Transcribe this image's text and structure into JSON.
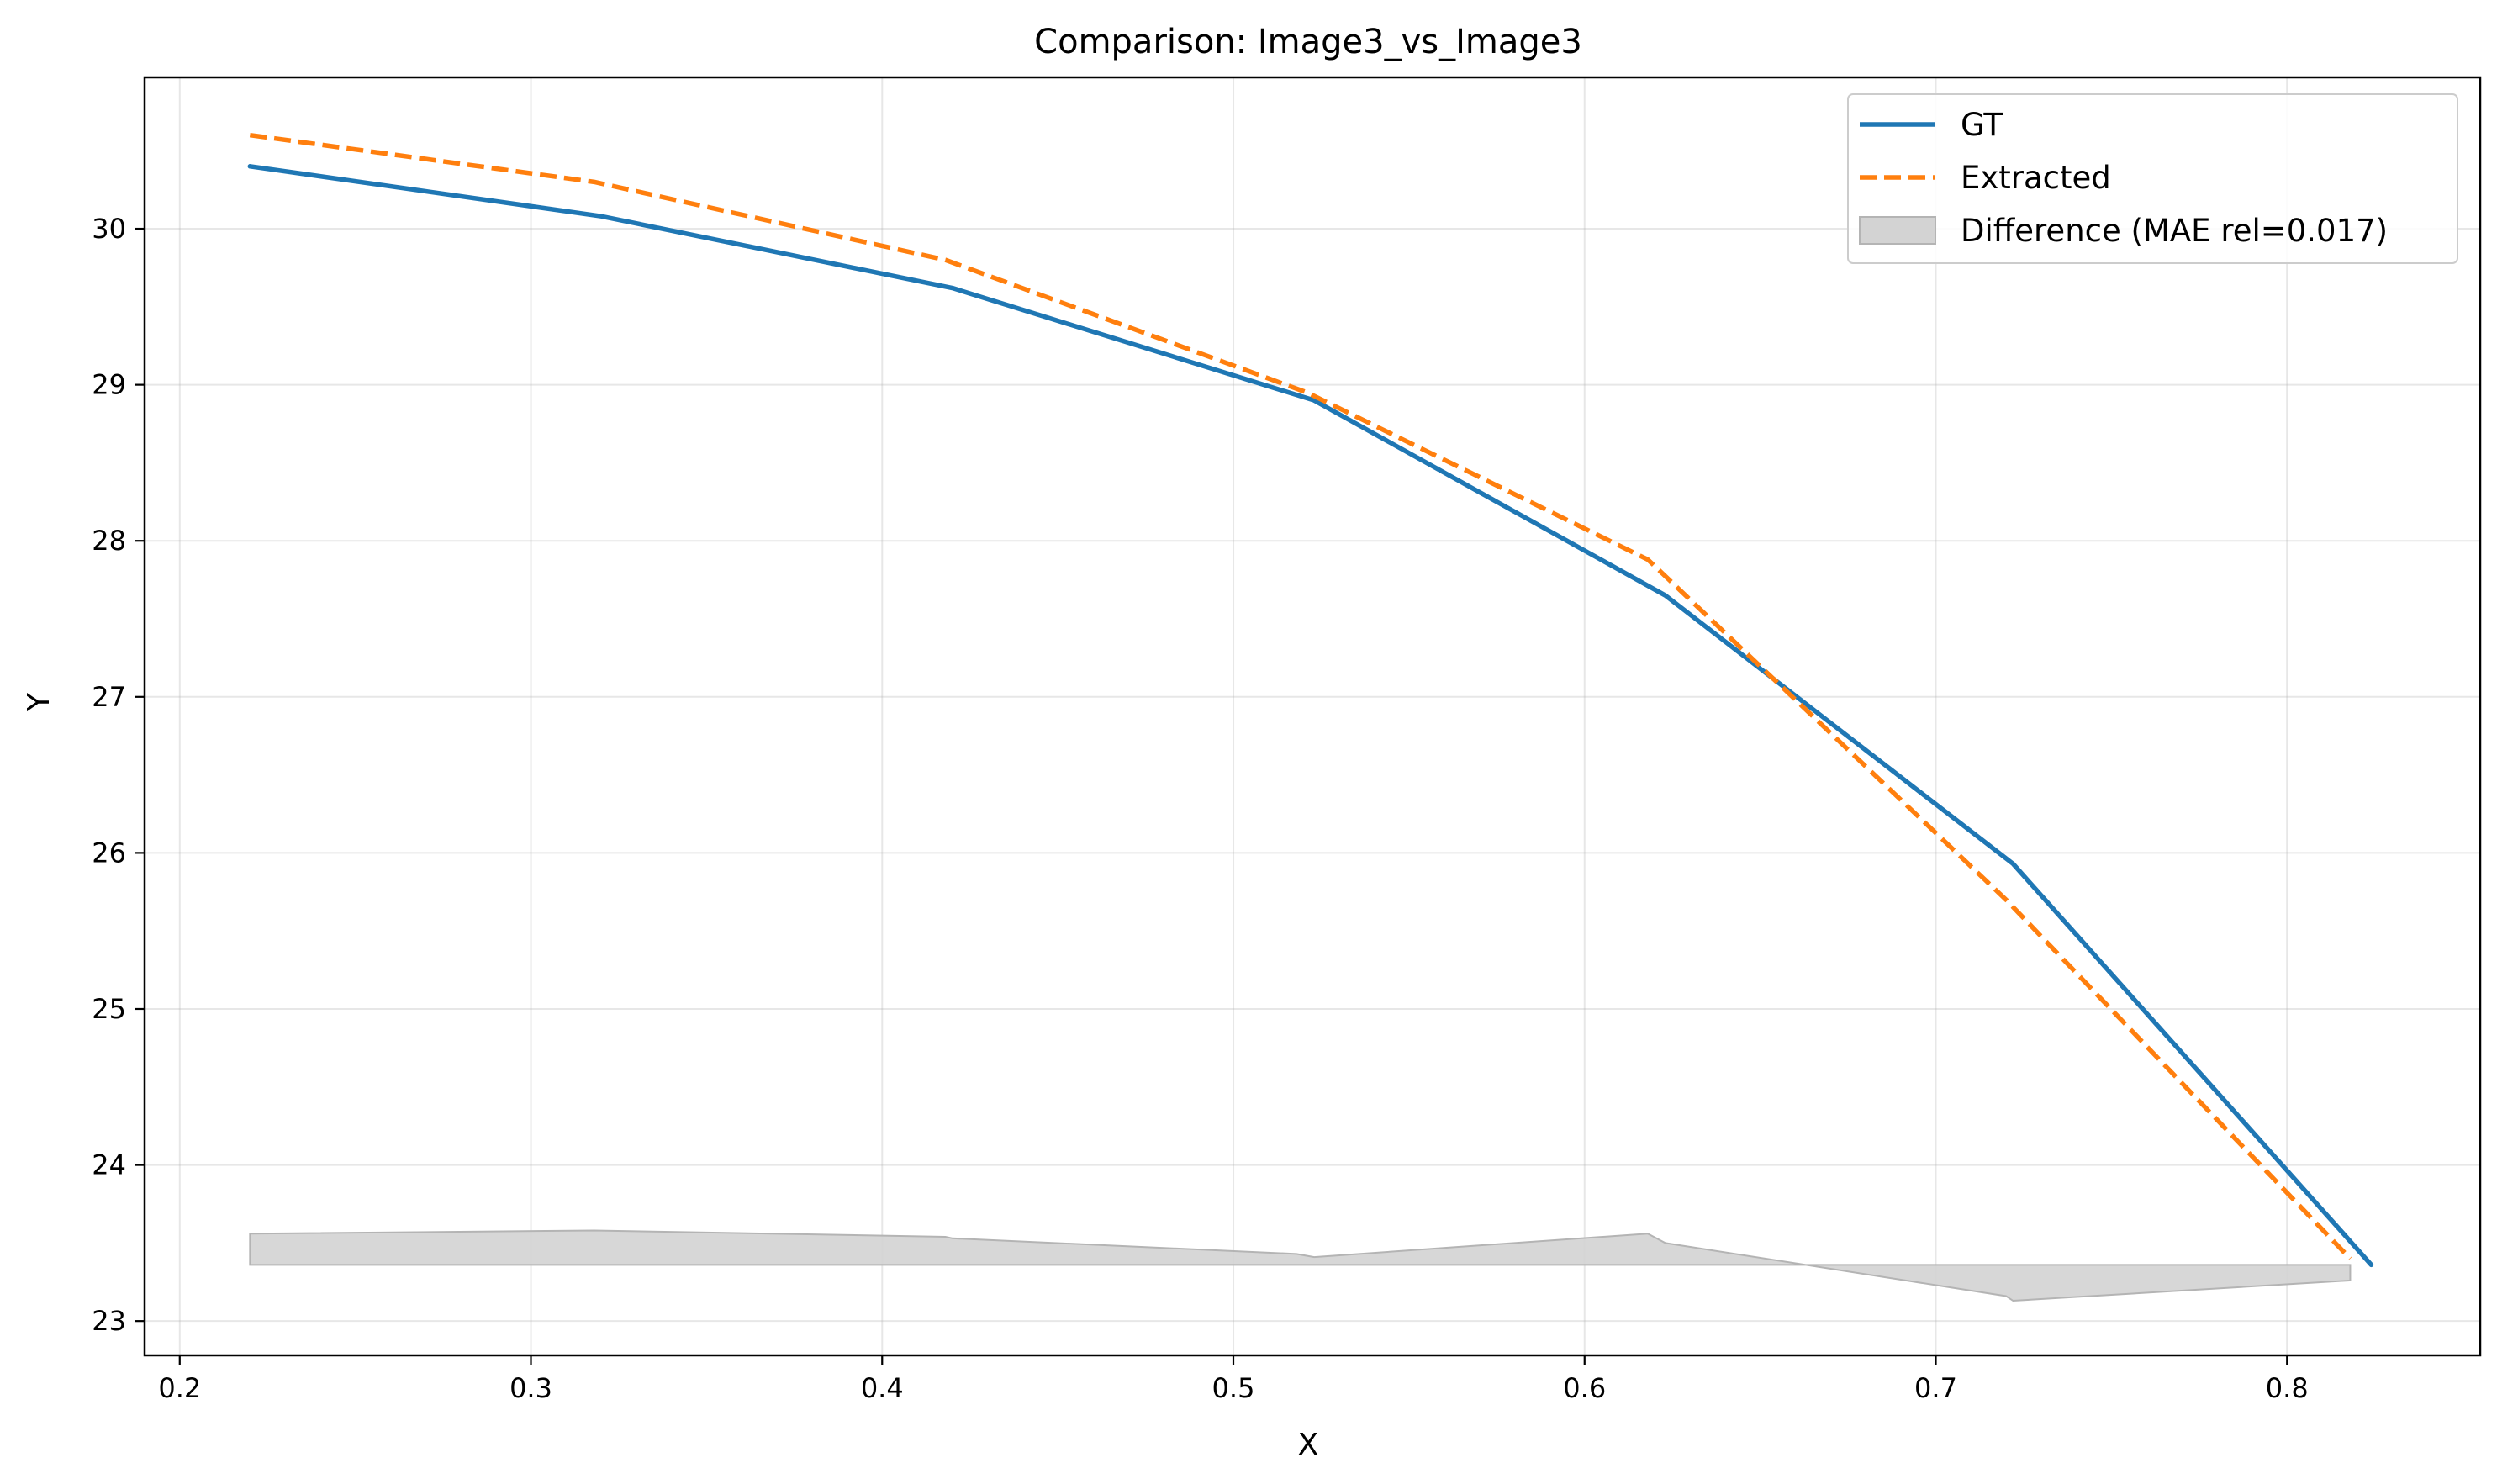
{
  "chart_data": {
    "type": "line",
    "title": "Comparison: Image3_vs_Image3",
    "xlabel": "X",
    "ylabel": "Y",
    "xlim": [
      0.19,
      0.855
    ],
    "ylim": [
      22.78,
      30.97
    ],
    "xticks": [
      0.2,
      0.3,
      0.4,
      0.5,
      0.6,
      0.7,
      0.8
    ],
    "xtick_labels": [
      "0.2",
      "0.3",
      "0.4",
      "0.5",
      "0.6",
      "0.7",
      "0.8"
    ],
    "yticks": [
      23,
      24,
      25,
      26,
      27,
      28,
      29,
      30
    ],
    "ytick_labels": [
      "23",
      "24",
      "25",
      "26",
      "27",
      "28",
      "29",
      "30"
    ],
    "grid": true,
    "legend_position": "top-right",
    "series": [
      {
        "name": "GT",
        "style": "solid",
        "color": "#1f77b4",
        "points": [
          {
            "x": 0.22,
            "y": 30.4
          },
          {
            "x": 0.32,
            "y": 30.08
          },
          {
            "x": 0.42,
            "y": 29.62
          },
          {
            "x": 0.523,
            "y": 28.9
          },
          {
            "x": 0.623,
            "y": 27.65
          },
          {
            "x": 0.722,
            "y": 25.93
          },
          {
            "x": 0.824,
            "y": 23.36
          }
        ]
      },
      {
        "name": "Extracted",
        "style": "dashed",
        "color": "#ff7f0e",
        "points": [
          {
            "x": 0.22,
            "y": 30.6
          },
          {
            "x": 0.318,
            "y": 30.3
          },
          {
            "x": 0.418,
            "y": 29.8
          },
          {
            "x": 0.521,
            "y": 28.95
          },
          {
            "x": 0.618,
            "y": 27.88
          },
          {
            "x": 0.72,
            "y": 25.7
          },
          {
            "x": 0.818,
            "y": 23.4
          }
        ]
      }
    ],
    "difference_band": {
      "name": "Difference (MAE rel=0.017)",
      "color": "#d3d3d3",
      "edge_color": "#b4b4b4",
      "baseline": 23.36,
      "points": [
        {
          "x": 0.22,
          "y": 23.56
        },
        {
          "x": 0.318,
          "y": 23.58
        },
        {
          "x": 0.418,
          "y": 23.54
        },
        {
          "x": 0.42,
          "y": 23.53
        },
        {
          "x": 0.518,
          "y": 23.43
        },
        {
          "x": 0.523,
          "y": 23.41
        },
        {
          "x": 0.618,
          "y": 23.56
        },
        {
          "x": 0.623,
          "y": 23.5
        },
        {
          "x": 0.72,
          "y": 23.16
        },
        {
          "x": 0.722,
          "y": 23.13
        },
        {
          "x": 0.818,
          "y": 23.26
        }
      ]
    }
  }
}
